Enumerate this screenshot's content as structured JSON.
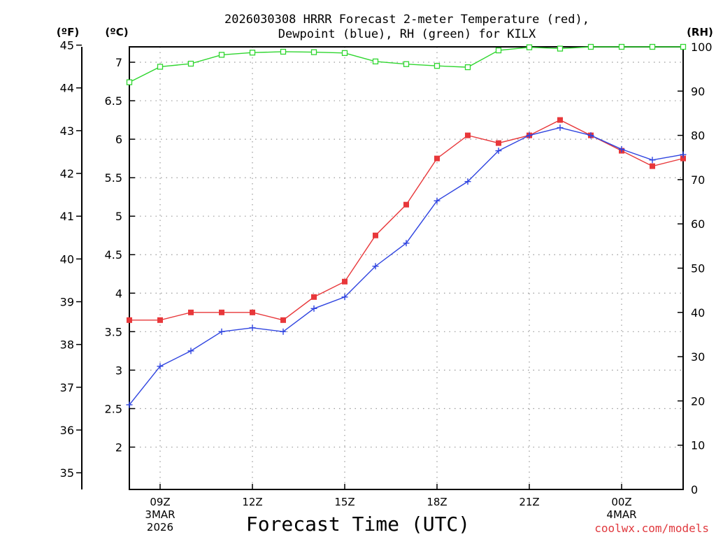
{
  "chart_data": {
    "type": "line",
    "title_line1": "2026030308 HRRR Forecast 2-meter Temperature (red),",
    "title_line2": "Dewpoint (blue), RH (green) for KILX",
    "xlabel": "Forecast Time (UTC)",
    "credit": "coolwx.com/models",
    "units": {
      "fahrenheit": "(ºF)",
      "celsius": "(ºC)",
      "rh": "(RH)"
    },
    "x_range": [
      8,
      26
    ],
    "celsius_range": [
      1.45,
      7.2
    ],
    "rh_range": [
      0,
      100
    ],
    "x_ticks": [
      {
        "x": 9,
        "lines": [
          "09Z",
          "3MAR",
          "2026"
        ]
      },
      {
        "x": 12,
        "lines": [
          "12Z"
        ]
      },
      {
        "x": 15,
        "lines": [
          "15Z"
        ]
      },
      {
        "x": 18,
        "lines": [
          "18Z"
        ]
      },
      {
        "x": 21,
        "lines": [
          "21Z"
        ]
      },
      {
        "x": 24,
        "lines": [
          "00Z",
          "4MAR"
        ]
      }
    ],
    "celsius_ticks": [
      2,
      2.5,
      3,
      3.5,
      4,
      4.5,
      5,
      5.5,
      6,
      6.5,
      7
    ],
    "fahrenheit_ticks": [
      35,
      36,
      37,
      38,
      39,
      40,
      41,
      42,
      43,
      44,
      45
    ],
    "rh_ticks": [
      0,
      10,
      20,
      30,
      40,
      50,
      60,
      70,
      80,
      90,
      100
    ],
    "series": [
      {
        "name": "Temperature",
        "color": "#e8373a",
        "marker": "filled-square",
        "axis": "celsius",
        "x": [
          8,
          9,
          10,
          11,
          12,
          13,
          14,
          15,
          16,
          17,
          18,
          19,
          20,
          21,
          22,
          23,
          24,
          25,
          26
        ],
        "values": [
          3.65,
          3.65,
          3.75,
          3.75,
          3.75,
          3.65,
          3.95,
          4.15,
          4.75,
          5.15,
          5.75,
          6.05,
          5.95,
          6.05,
          6.25,
          6.05,
          5.85,
          5.65,
          5.75
        ]
      },
      {
        "name": "Dewpoint",
        "color": "#2f44e0",
        "marker": "plus",
        "axis": "celsius",
        "x": [
          8,
          9,
          10,
          11,
          12,
          13,
          14,
          15,
          16,
          17,
          18,
          19,
          20,
          21,
          22,
          23,
          24,
          25,
          26
        ],
        "values": [
          2.55,
          3.05,
          3.25,
          3.5,
          3.55,
          3.5,
          3.8,
          3.95,
          4.35,
          4.65,
          5.2,
          5.45,
          5.85,
          6.05,
          6.15,
          6.05,
          5.87,
          5.73,
          5.8
        ]
      },
      {
        "name": "RH",
        "color": "#2fd62f",
        "marker": "open-square",
        "axis": "rh",
        "x": [
          8,
          9,
          10,
          11,
          12,
          13,
          14,
          15,
          16,
          17,
          18,
          19,
          20,
          21,
          22,
          23,
          24,
          25,
          26
        ],
        "values": [
          92,
          95.5,
          96.2,
          98.2,
          98.7,
          98.9,
          98.8,
          98.6,
          96.7,
          96.1,
          95.7,
          95.4,
          99.2,
          99.9,
          99.6,
          100,
          100,
          100,
          100
        ]
      }
    ]
  }
}
